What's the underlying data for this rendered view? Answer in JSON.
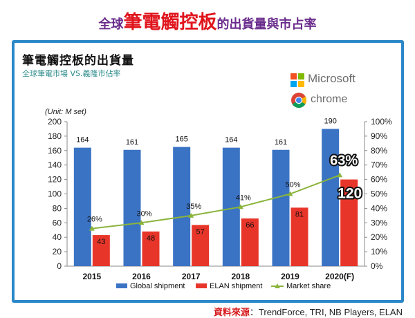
{
  "page": {
    "title_prefix": "全球",
    "title_main": "筆電觸控板",
    "title_suffix": "的出貨量與市占率"
  },
  "logos": {
    "microsoft_text": "Microsoft",
    "microsoft_colors": [
      "#f25022",
      "#7fba00",
      "#00a4ef",
      "#ffb900"
    ],
    "chrome_text": "chrome"
  },
  "source": {
    "label": "資料來源",
    "text": "：TrendForce, TRI, NB Players, ELAN"
  },
  "chart_data": {
    "type": "bar",
    "title": "筆電觸控板的出貨量",
    "subtitle": "全球筆電市場 VS.義隆市佔率",
    "unit_label": "(Unit: M set)",
    "categories": [
      "2015",
      "2016",
      "2017",
      "2018",
      "2019",
      "2020(F)"
    ],
    "series": [
      {
        "name": "Global shipment",
        "type": "bar",
        "axis": "left",
        "color": "#3a73c4",
        "values": [
          164,
          161,
          165,
          164,
          161,
          190
        ]
      },
      {
        "name": "ELAN shipment",
        "type": "bar",
        "axis": "left",
        "color": "#e8352a",
        "values": [
          43,
          48,
          57,
          66,
          81,
          120
        ]
      },
      {
        "name": "Market share",
        "type": "line",
        "axis": "right",
        "color": "#8ab43c",
        "values": [
          26,
          30,
          35,
          41,
          50,
          63
        ]
      }
    ],
    "y_left": {
      "min": 0,
      "max": 200,
      "step": 20
    },
    "y_right": {
      "min": 0,
      "max": 100,
      "step": 10,
      "suffix": "%"
    },
    "legend_position": "bottom",
    "grid": false
  }
}
